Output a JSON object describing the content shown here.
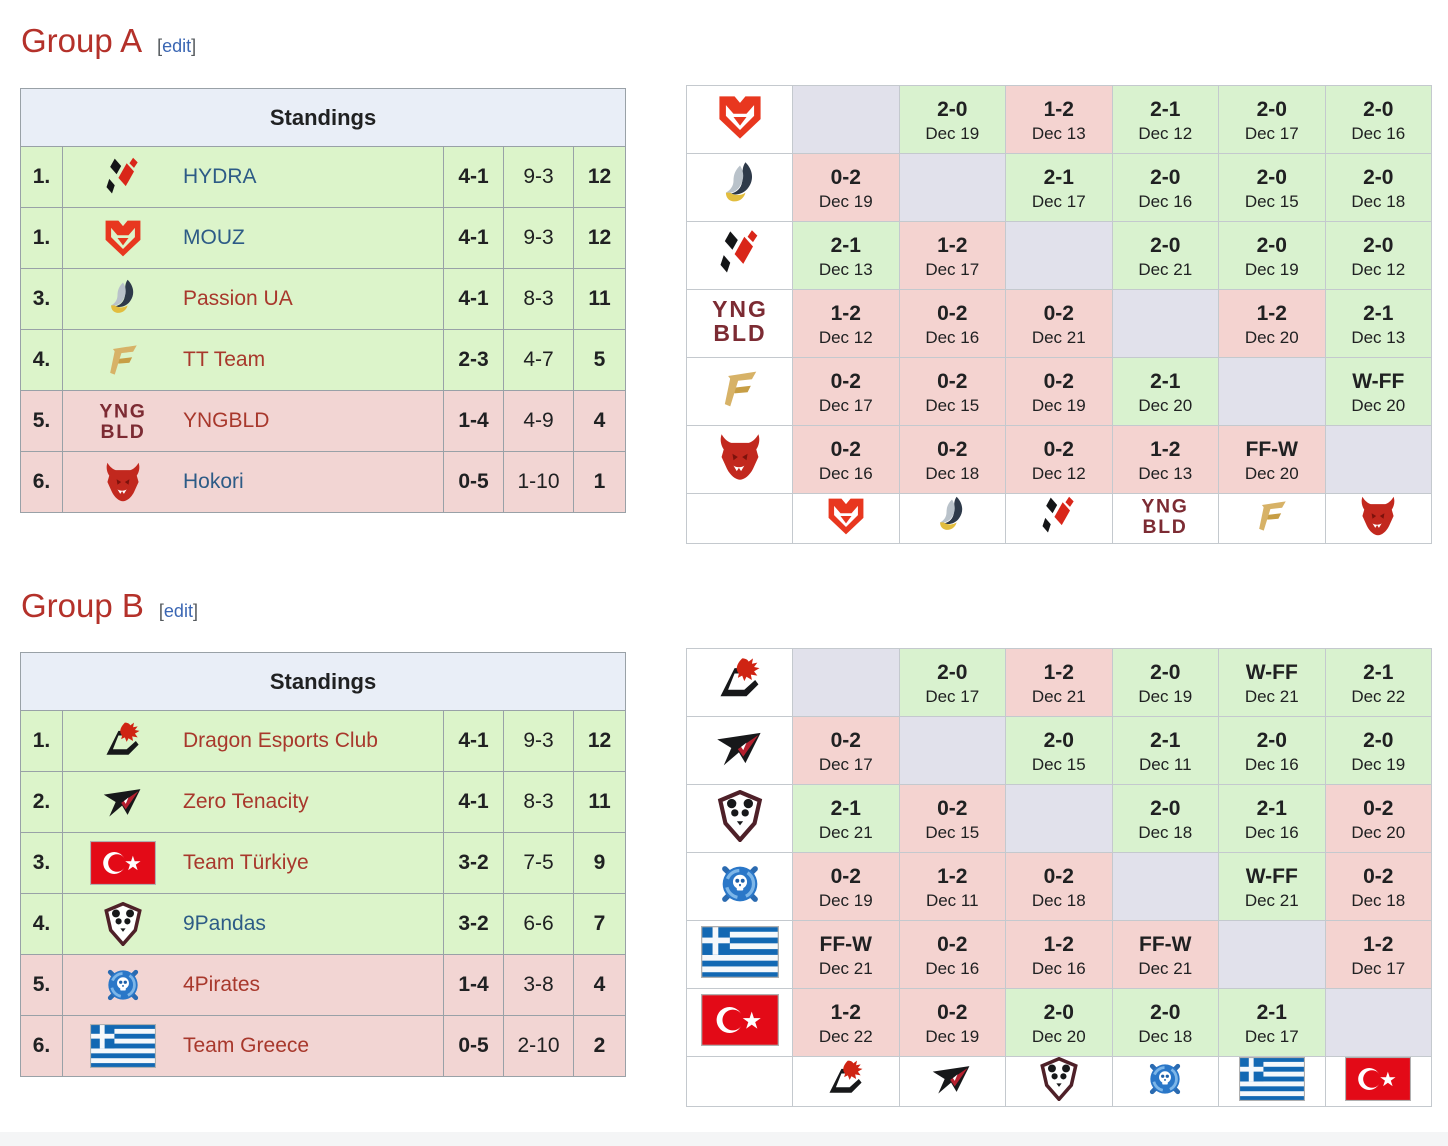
{
  "colors": {
    "win_bg": "#d9f2cf",
    "loss_bg": "#f4d3d0",
    "diag_bg": "#e1e1eb",
    "up_bg": "#dcf4ca",
    "down_bg": "#f2d5d3",
    "header_bg": "#e9eef7",
    "heading_color": "#b4312a",
    "link_blue": "#2d5b86",
    "link_red": "#a8382c"
  },
  "groups": [
    {
      "id": "a",
      "title": "Group A",
      "edit_label": "edit",
      "standings_header": "Standings",
      "standings": [
        {
          "rank": "1.",
          "team": "HYDRA",
          "icon": "hydra-icon",
          "link": "blue",
          "wl": "4-1",
          "maps": "9-3",
          "points": "12",
          "zone": "up"
        },
        {
          "rank": "1.",
          "team": "MOUZ",
          "icon": "mouz-icon",
          "link": "blue",
          "wl": "4-1",
          "maps": "9-3",
          "points": "12",
          "zone": "up"
        },
        {
          "rank": "3.",
          "team": "Passion UA",
          "icon": "passion-ua-icon",
          "link": "red",
          "wl": "4-1",
          "maps": "8-3",
          "points": "11",
          "zone": "up"
        },
        {
          "rank": "4.",
          "team": "TT Team",
          "icon": "tt-team-icon",
          "link": "red",
          "wl": "2-3",
          "maps": "4-7",
          "points": "5",
          "zone": "up"
        },
        {
          "rank": "5.",
          "team": "YNGBLD",
          "icon": "yngbld-icon",
          "link": "red",
          "wl": "1-4",
          "maps": "4-9",
          "points": "4",
          "zone": "down"
        },
        {
          "rank": "6.",
          "team": "Hokori",
          "icon": "hokori-icon",
          "link": "blue",
          "wl": "0-5",
          "maps": "1-10",
          "points": "1",
          "zone": "down"
        }
      ],
      "crosstable": {
        "order": [
          "mouz-icon",
          "passion-ua-icon",
          "hydra-icon",
          "yngbld-icon",
          "tt-team-icon",
          "hokori-icon"
        ],
        "rows": [
          [
            null,
            {
              "score": "2-0",
              "date": "Dec 19",
              "result": "win"
            },
            {
              "score": "1-2",
              "date": "Dec 13",
              "result": "loss"
            },
            {
              "score": "2-1",
              "date": "Dec 12",
              "result": "win"
            },
            {
              "score": "2-0",
              "date": "Dec 17",
              "result": "win"
            },
            {
              "score": "2-0",
              "date": "Dec 16",
              "result": "win"
            }
          ],
          [
            {
              "score": "0-2",
              "date": "Dec 19",
              "result": "loss"
            },
            null,
            {
              "score": "2-1",
              "date": "Dec 17",
              "result": "win"
            },
            {
              "score": "2-0",
              "date": "Dec 16",
              "result": "win"
            },
            {
              "score": "2-0",
              "date": "Dec 15",
              "result": "win"
            },
            {
              "score": "2-0",
              "date": "Dec 18",
              "result": "win"
            }
          ],
          [
            {
              "score": "2-1",
              "date": "Dec 13",
              "result": "win"
            },
            {
              "score": "1-2",
              "date": "Dec 17",
              "result": "loss"
            },
            null,
            {
              "score": "2-0",
              "date": "Dec 21",
              "result": "win"
            },
            {
              "score": "2-0",
              "date": "Dec 19",
              "result": "win"
            },
            {
              "score": "2-0",
              "date": "Dec 12",
              "result": "win"
            }
          ],
          [
            {
              "score": "1-2",
              "date": "Dec 12",
              "result": "loss"
            },
            {
              "score": "0-2",
              "date": "Dec 16",
              "result": "loss"
            },
            {
              "score": "0-2",
              "date": "Dec 21",
              "result": "loss"
            },
            null,
            {
              "score": "1-2",
              "date": "Dec 20",
              "result": "loss"
            },
            {
              "score": "2-1",
              "date": "Dec 13",
              "result": "win"
            }
          ],
          [
            {
              "score": "0-2",
              "date": "Dec 17",
              "result": "loss"
            },
            {
              "score": "0-2",
              "date": "Dec 15",
              "result": "loss"
            },
            {
              "score": "0-2",
              "date": "Dec 19",
              "result": "loss"
            },
            {
              "score": "2-1",
              "date": "Dec 20",
              "result": "win"
            },
            null,
            {
              "score": "W-FF",
              "date": "Dec 20",
              "result": "win"
            }
          ],
          [
            {
              "score": "0-2",
              "date": "Dec 16",
              "result": "loss"
            },
            {
              "score": "0-2",
              "date": "Dec 18",
              "result": "loss"
            },
            {
              "score": "0-2",
              "date": "Dec 12",
              "result": "loss"
            },
            {
              "score": "1-2",
              "date": "Dec 13",
              "result": "loss"
            },
            {
              "score": "FF-W",
              "date": "Dec 20",
              "result": "loss"
            },
            null
          ]
        ]
      }
    },
    {
      "id": "b",
      "title": "Group B",
      "edit_label": "edit",
      "standings_header": "Standings",
      "standings": [
        {
          "rank": "1.",
          "team": "Dragon Esports Club",
          "icon": "dragon-esports-icon",
          "link": "red",
          "wl": "4-1",
          "maps": "9-3",
          "points": "12",
          "zone": "up"
        },
        {
          "rank": "2.",
          "team": "Zero Tenacity",
          "icon": "zero-tenacity-icon",
          "link": "red",
          "wl": "4-1",
          "maps": "8-3",
          "points": "11",
          "zone": "up"
        },
        {
          "rank": "3.",
          "team": "Team Türkiye",
          "icon": "turkiye-flag-icon",
          "link": "red",
          "wl": "3-2",
          "maps": "7-5",
          "points": "9",
          "zone": "up"
        },
        {
          "rank": "4.",
          "team": "9Pandas",
          "icon": "nine-pandas-icon",
          "link": "blue",
          "wl": "3-2",
          "maps": "6-6",
          "points": "7",
          "zone": "up"
        },
        {
          "rank": "5.",
          "team": "4Pirates",
          "icon": "four-pirates-icon",
          "link": "red",
          "wl": "1-4",
          "maps": "3-8",
          "points": "4",
          "zone": "down"
        },
        {
          "rank": "6.",
          "team": "Team Greece",
          "icon": "greece-flag-icon",
          "link": "red",
          "wl": "0-5",
          "maps": "2-10",
          "points": "2",
          "zone": "down"
        }
      ],
      "crosstable": {
        "order": [
          "dragon-esports-icon",
          "zero-tenacity-icon",
          "nine-pandas-icon",
          "four-pirates-icon",
          "greece-flag-icon",
          "turkiye-flag-icon"
        ],
        "rows": [
          [
            null,
            {
              "score": "2-0",
              "date": "Dec 17",
              "result": "win"
            },
            {
              "score": "1-2",
              "date": "Dec 21",
              "result": "loss"
            },
            {
              "score": "2-0",
              "date": "Dec 19",
              "result": "win"
            },
            {
              "score": "W-FF",
              "date": "Dec 21",
              "result": "win"
            },
            {
              "score": "2-1",
              "date": "Dec 22",
              "result": "win"
            }
          ],
          [
            {
              "score": "0-2",
              "date": "Dec 17",
              "result": "loss"
            },
            null,
            {
              "score": "2-0",
              "date": "Dec 15",
              "result": "win"
            },
            {
              "score": "2-1",
              "date": "Dec 11",
              "result": "win"
            },
            {
              "score": "2-0",
              "date": "Dec 16",
              "result": "win"
            },
            {
              "score": "2-0",
              "date": "Dec 19",
              "result": "win"
            }
          ],
          [
            {
              "score": "2-1",
              "date": "Dec 21",
              "result": "win"
            },
            {
              "score": "0-2",
              "date": "Dec 15",
              "result": "loss"
            },
            null,
            {
              "score": "2-0",
              "date": "Dec 18",
              "result": "win"
            },
            {
              "score": "2-1",
              "date": "Dec 16",
              "result": "win"
            },
            {
              "score": "0-2",
              "date": "Dec 20",
              "result": "loss"
            }
          ],
          [
            {
              "score": "0-2",
              "date": "Dec 19",
              "result": "loss"
            },
            {
              "score": "1-2",
              "date": "Dec 11",
              "result": "loss"
            },
            {
              "score": "0-2",
              "date": "Dec 18",
              "result": "loss"
            },
            null,
            {
              "score": "W-FF",
              "date": "Dec 21",
              "result": "win"
            },
            {
              "score": "0-2",
              "date": "Dec 18",
              "result": "loss"
            }
          ],
          [
            {
              "score": "FF-W",
              "date": "Dec 21",
              "result": "loss"
            },
            {
              "score": "0-2",
              "date": "Dec 16",
              "result": "loss"
            },
            {
              "score": "1-2",
              "date": "Dec 16",
              "result": "loss"
            },
            {
              "score": "FF-W",
              "date": "Dec 21",
              "result": "loss"
            },
            null,
            {
              "score": "1-2",
              "date": "Dec 17",
              "result": "loss"
            }
          ],
          [
            {
              "score": "1-2",
              "date": "Dec 22",
              "result": "loss"
            },
            {
              "score": "0-2",
              "date": "Dec 19",
              "result": "loss"
            },
            {
              "score": "2-0",
              "date": "Dec 20",
              "result": "win"
            },
            {
              "score": "2-0",
              "date": "Dec 18",
              "result": "win"
            },
            {
              "score": "2-1",
              "date": "Dec 17",
              "result": "win"
            },
            null
          ]
        ]
      }
    }
  ]
}
